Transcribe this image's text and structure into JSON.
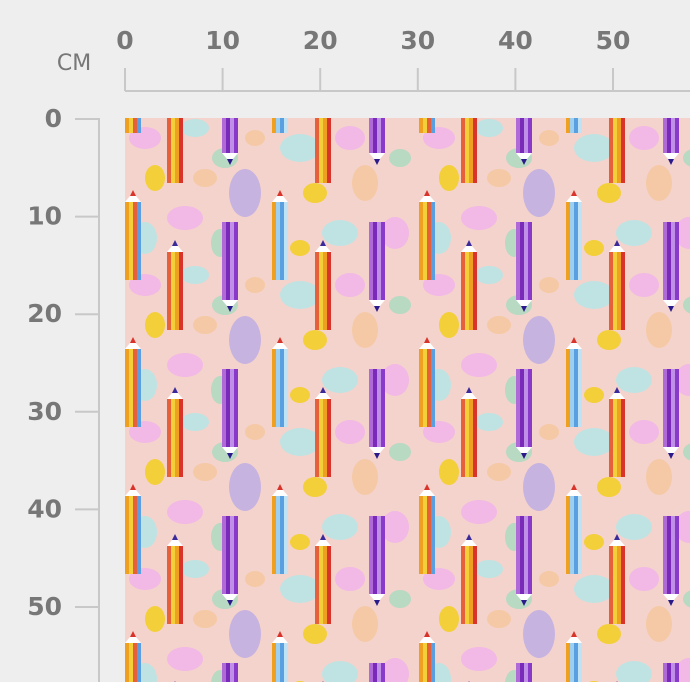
{
  "unit": "CM",
  "top_ruler": {
    "labels": [
      0,
      10,
      20,
      30,
      40,
      50
    ]
  },
  "left_ruler": {
    "labels": [
      0,
      10,
      20,
      30,
      40,
      50
    ]
  }
}
